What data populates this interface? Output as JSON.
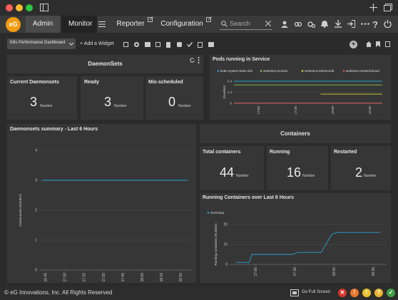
{
  "nav": {
    "tabs": [
      {
        "label": "Admin"
      },
      {
        "label": "Monitor"
      },
      {
        "label": "Reporter"
      },
      {
        "label": "Configuration"
      }
    ],
    "search_placeholder": "Search"
  },
  "toolbar": {
    "dashboard_name": "K8s Performance Dashboard",
    "add_widget": "+ Add a Widget"
  },
  "daemonsets": {
    "title": "DaemonSets",
    "tiles": [
      {
        "label": "Current Daemonsets",
        "value": "3",
        "unit": "Number"
      },
      {
        "label": "Ready",
        "value": "3",
        "unit": "Number"
      },
      {
        "label": "Mis-scheduled",
        "value": "0",
        "unit": "Number"
      }
    ]
  },
  "containers": {
    "title": "Containers",
    "tiles": [
      {
        "label": "Total containers",
        "value": "44",
        "unit": "Number"
      },
      {
        "label": "Running",
        "value": "16",
        "unit": "Number"
      },
      {
        "label": "Restarted",
        "value": "2",
        "unit": "Number"
      }
    ]
  },
  "colors": {
    "line": "#29a3d6",
    "green": "#8bc34a",
    "yellow": "#d4d43a",
    "red": "#e05252"
  },
  "footer": {
    "copyright": "© eG Innovations, Inc. All Rights Reserved",
    "full_screen": "Go Full Screen"
  },
  "chart_data": [
    {
      "title": "Pods running in Service",
      "type": "line",
      "ylabel": "(Number)",
      "ylim": [
        0,
        2.4
      ],
      "yticks": [
        "2.4",
        "1.2",
        "0"
      ],
      "xticks": [
        "17:00",
        "17:30",
        "18:00",
        "18:30"
      ],
      "series": [
        {
          "name": "kube-system:kube-dns",
          "color": "#29a3d6",
          "x": [
            "16:40",
            "18:40"
          ],
          "values": [
            2.4,
            2.4
          ]
        },
        {
          "name": "webstore:product",
          "color": "#8bc34a",
          "x": [
            "16:40",
            "18:40"
          ],
          "values": [
            2.0,
            2.0
          ]
        },
        {
          "name": "webstore:webstoredt",
          "color": "#d4d43a",
          "x": [
            "17:50",
            "18:40"
          ],
          "values": [
            1.0,
            1.0
          ]
        },
        {
          "name": "webstore:masterfulcard",
          "color": "#e05252",
          "x": [
            "16:40",
            "18:40"
          ],
          "values": [
            0,
            0
          ]
        }
      ]
    },
    {
      "title": "Daemonsets summary - Last 6 Hours",
      "type": "line",
      "ylabel": "Daemonsets (Number)",
      "ylim": [
        0,
        4
      ],
      "yticks": [
        "4",
        "3",
        "2",
        "1",
        "0"
      ],
      "xticks": [
        "16:45",
        "17:00",
        "17:15",
        "17:30",
        "17:45",
        "18:00",
        "18:15",
        "18:30"
      ],
      "series": [
        {
          "name": "",
          "color": "#29a3d6",
          "x": [
            "16:42",
            "18:35"
          ],
          "values": [
            3,
            3
          ]
        }
      ]
    },
    {
      "title": "Running Containers over Last 6 Hours",
      "type": "line",
      "ylabel": "Running containers (Number)",
      "ylim": [
        0,
        20
      ],
      "yticks": [
        "20",
        "10",
        "0"
      ],
      "xticks": [
        "17:00",
        "17:30",
        "18:00",
        "18:30"
      ],
      "series": [
        {
          "name": "Summary",
          "color": "#29a3d6",
          "x": [
            "16:45",
            "16:55",
            "16:57",
            "17:15",
            "17:28",
            "17:32",
            "17:45",
            "17:50",
            "17:58",
            "18:02",
            "18:35"
          ],
          "values": [
            1,
            1,
            5,
            5,
            5,
            6,
            6,
            6,
            15,
            16,
            16
          ]
        }
      ]
    }
  ]
}
